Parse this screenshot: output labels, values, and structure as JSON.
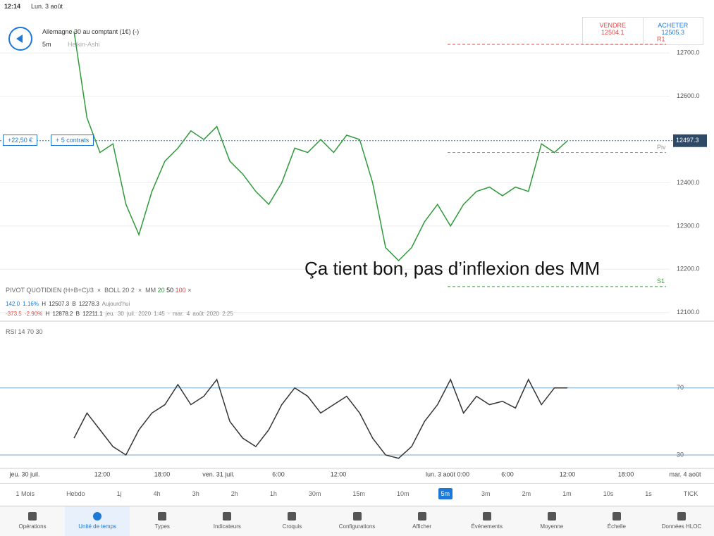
{
  "status": {
    "time": "12:14",
    "date": "Lun. 3 août"
  },
  "header": {
    "instrument": "Allemagne 30 au comptant (1€) (-)",
    "interval": "5m",
    "chart_style": "Heikin-Ashi",
    "sell_label": "VENDRE",
    "sell_price": "12504.1",
    "buy_label": "ACHETER",
    "buy_price": "12505.3"
  },
  "position": {
    "pnl": "+22,50 €",
    "size": "+ 5 contrats"
  },
  "annotation": "Ça tient bon, pas d’inflexion des MM",
  "indicators": {
    "pivot": "PIVOT QUOTIDIEN (H+B+C)/3",
    "boll": "BOLL 20 2",
    "mm": "MM",
    "mm20": "20",
    "mm50": "50",
    "mm100": "100",
    "row1": [
      "142.0",
      "1.16%",
      "H 12507.3",
      "B 12278.3",
      "Aujourd'hui"
    ],
    "row2": [
      "-373.5",
      "-2.90%",
      "H 12878.2",
      "B 12211.1",
      "jeu. 30 juil. 2020 1:45 - mar. 4 août 2020 2:25"
    ],
    "rsi": "RSI 14 70 30"
  },
  "chart_data": [
    {
      "type": "line",
      "color": "#2e9a3a",
      "ylim": [
        12080,
        12790
      ],
      "yticks": [
        {
          "value": 12700,
          "label": "12700.0"
        },
        {
          "value": 12600,
          "label": "12600.0"
        },
        {
          "value": 12400,
          "label": "12400.0"
        },
        {
          "value": 12300,
          "label": "12300.0"
        },
        {
          "value": 12200,
          "label": "12200.0"
        },
        {
          "value": 12100,
          "label": "12100.0"
        }
      ],
      "grid": true,
      "values": [
        12750,
        12550,
        12470,
        12490,
        12350,
        12280,
        12380,
        12450,
        12480,
        12520,
        12500,
        12530,
        12450,
        12420,
        12380,
        12350,
        12400,
        12480,
        12470,
        12500,
        12470,
        12510,
        12500,
        12400,
        12250,
        12220,
        12250,
        12310,
        12350,
        12300,
        12350,
        12380,
        12390,
        12370,
        12390,
        12380,
        12490,
        12470,
        12497
      ],
      "levels": [
        {
          "name": "R1",
          "value": 12720,
          "color": "#e04848"
        },
        {
          "name": "Piv",
          "value": 12470,
          "color": "#999999"
        },
        {
          "name": "S1",
          "value": 12160,
          "color": "#3a9a3a"
        }
      ],
      "position_line": {
        "value": 12497.3,
        "label": "12497.3"
      }
    },
    {
      "type": "line",
      "color": "#333333",
      "ylim": [
        22,
        106
      ],
      "yticks": [
        70,
        30
      ],
      "values": [
        40,
        55,
        45,
        35,
        30,
        45,
        55,
        60,
        72,
        60,
        65,
        75,
        50,
        40,
        35,
        45,
        60,
        70,
        65,
        55,
        60,
        65,
        55,
        40,
        30,
        28,
        35,
        50,
        60,
        75,
        55,
        65,
        60,
        62,
        58,
        75,
        60,
        70,
        70
      ]
    }
  ],
  "time_axis": [
    "jeu. 30 juil.",
    "12:00",
    "18:00",
    "ven. 31 juil.",
    "6:00",
    "12:00",
    "lun. 3 août 0:00",
    "6:00",
    "12:00",
    "18:00",
    "mar. 4 août"
  ],
  "timeframes": [
    "1 Mois",
    "Hebdo",
    "1j",
    "4h",
    "3h",
    "2h",
    "1h",
    "30m",
    "15m",
    "10m",
    "5m",
    "3m",
    "2m",
    "1m",
    "10s",
    "1s",
    "TICK"
  ],
  "tabs": [
    "Opérations",
    "Unité de temps",
    "Types",
    "Indicateurs",
    "Croquis",
    "Configurations",
    "Afficher",
    "Événements",
    "Moyenne",
    "Échelle",
    "Données HLOC"
  ]
}
